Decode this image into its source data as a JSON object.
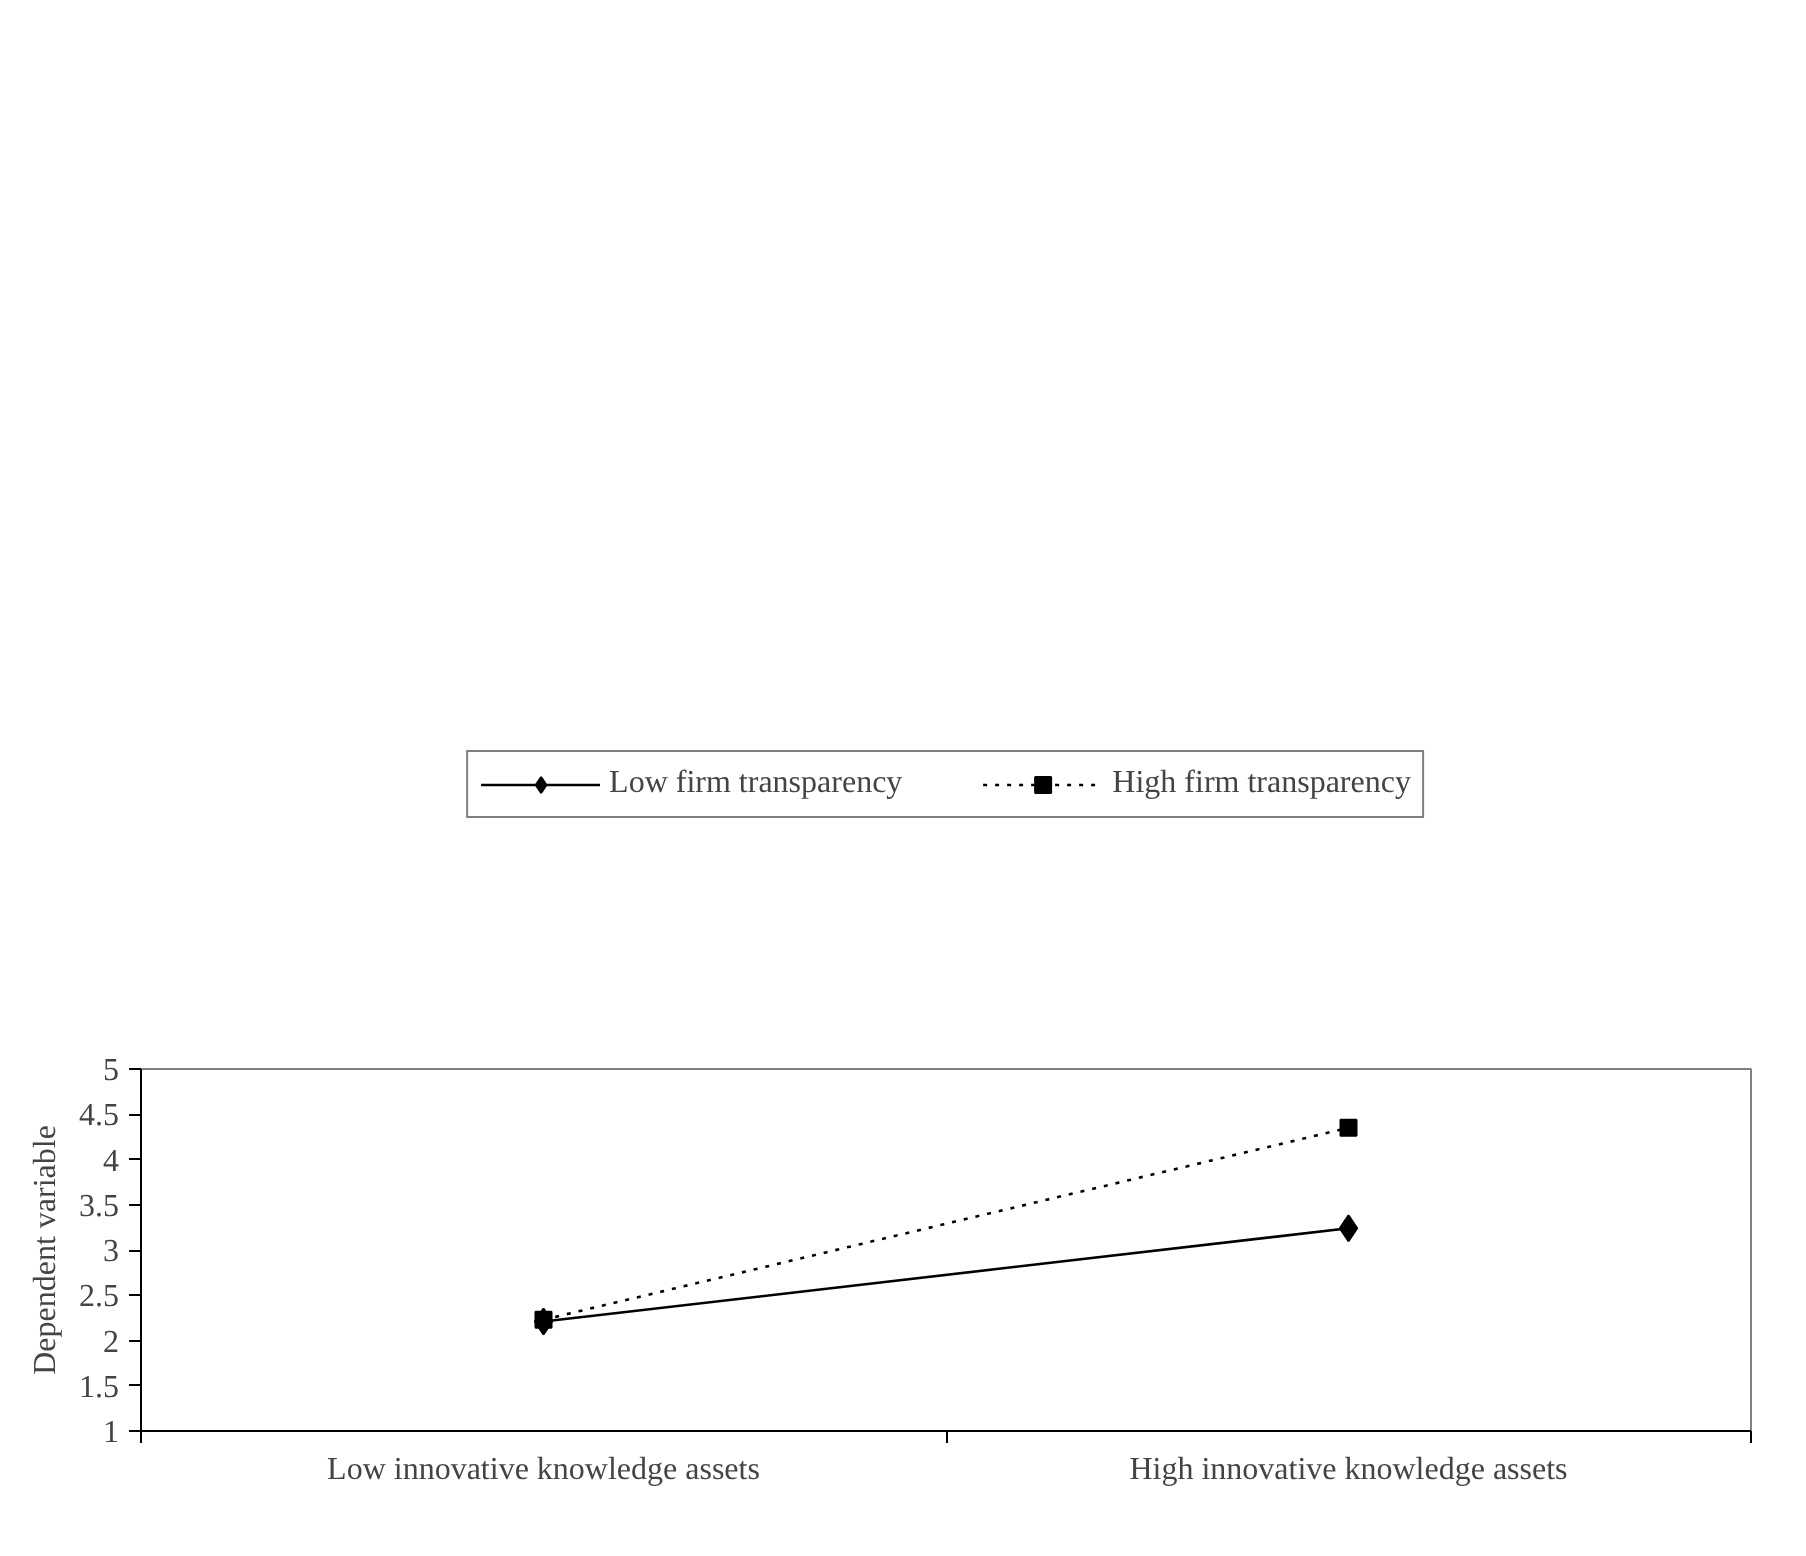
{
  "chart_data": {
    "type": "line",
    "ylabel": "Dependent variable",
    "categories": [
      "Low innovative knowledge assets",
      "High innovative knowledge assets"
    ],
    "series": [
      {
        "name": "Low firm transparency",
        "color": "#000000",
        "values": [
          2.21,
          3.24
        ],
        "marker": "diamond",
        "line_style": "solid"
      },
      {
        "name": "High firm transparency",
        "color": "#000000",
        "values": [
          2.23,
          4.35
        ],
        "marker": "square",
        "line_style": "dotted"
      }
    ],
    "ylim": [
      1,
      5
    ],
    "yticks": [
      1,
      1.5,
      2,
      2.5,
      3,
      3.5,
      4,
      4.5,
      5
    ],
    "grid": false,
    "legend": "top"
  }
}
